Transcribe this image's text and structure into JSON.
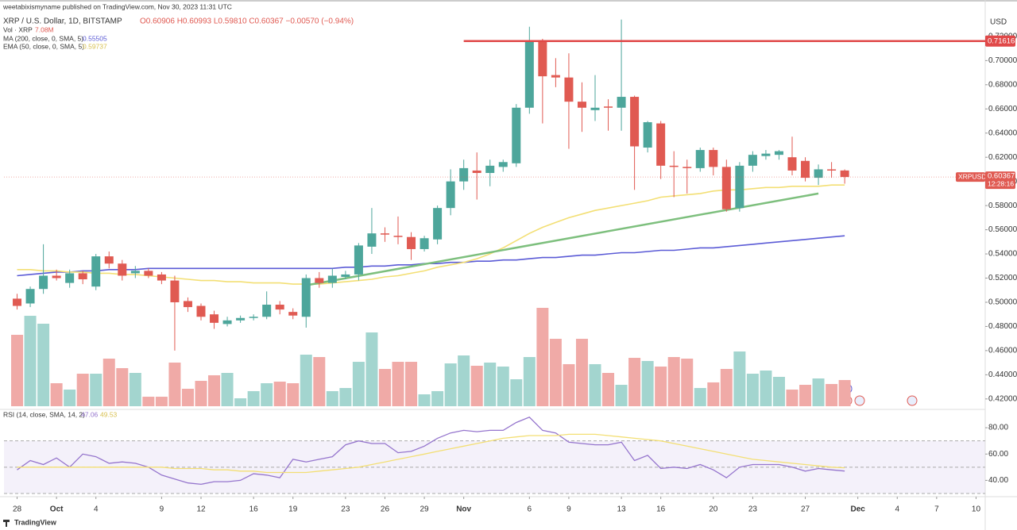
{
  "header": {
    "publisher": "weetabixismyname published on TradingView.com, Nov 30, 2023 11:31 UTC",
    "symbol": "XRP / U.S. Dollar, 1D, BITSTAMP",
    "ohlc": "O0.60906 H0.60993 L0.59810 C0.60367 −0.00570 (−0.94%)",
    "vol_value": "7.08M",
    "ma_value": "0.55505",
    "ema_value": "0.59737",
    "rsi_value": "47.06",
    "rsi_sma_value": "49.53",
    "footer": "TradingView"
  },
  "chart_data": [
    {
      "type": "candlestick",
      "currency": "USD",
      "x": [
        "2023-09-28",
        "2023-09-29",
        "2023-09-30",
        "2023-10-01",
        "2023-10-02",
        "2023-10-03",
        "2023-10-04",
        "2023-10-05",
        "2023-10-06",
        "2023-10-07",
        "2023-10-08",
        "2023-10-09",
        "2023-10-10",
        "2023-10-11",
        "2023-10-12",
        "2023-10-13",
        "2023-10-14",
        "2023-10-15",
        "2023-10-16",
        "2023-10-17",
        "2023-10-18",
        "2023-10-19",
        "2023-10-20",
        "2023-10-21",
        "2023-10-22",
        "2023-10-23",
        "2023-10-24",
        "2023-10-25",
        "2023-10-26",
        "2023-10-27",
        "2023-10-28",
        "2023-10-29",
        "2023-10-30",
        "2023-10-31",
        "2023-11-01",
        "2023-11-02",
        "2023-11-03",
        "2023-11-04",
        "2023-11-05",
        "2023-11-06",
        "2023-11-07",
        "2023-11-08",
        "2023-11-09",
        "2023-11-10",
        "2023-11-11",
        "2023-11-12",
        "2023-11-13",
        "2023-11-14",
        "2023-11-15",
        "2023-11-16",
        "2023-11-17",
        "2023-11-18",
        "2023-11-19",
        "2023-11-20",
        "2023-11-21",
        "2023-11-22",
        "2023-11-23",
        "2023-11-24",
        "2023-11-25",
        "2023-11-26",
        "2023-11-27",
        "2023-11-28",
        "2023-11-29",
        "2023-11-30"
      ],
      "open": [
        0.503,
        0.499,
        0.511,
        0.522,
        0.516,
        0.524,
        0.513,
        0.538,
        0.532,
        0.524,
        0.526,
        0.523,
        0.518,
        0.501,
        0.497,
        0.49,
        0.482,
        0.485,
        0.487,
        0.488,
        0.498,
        0.492,
        0.488,
        0.52,
        0.516,
        0.521,
        0.523,
        0.546,
        0.557,
        0.555,
        0.554,
        0.544,
        0.552,
        0.578,
        0.6,
        0.609,
        0.607,
        0.612,
        0.615,
        0.661,
        0.716,
        0.688,
        0.686,
        0.666,
        0.659,
        0.662,
        0.661,
        0.67,
        0.628,
        0.648,
        0.613,
        0.612,
        0.611,
        0.626,
        0.612,
        0.578,
        0.613,
        0.621,
        0.622,
        0.62,
        0.617,
        0.603,
        0.61,
        0.60906
      ],
      "high": [
        0.507,
        0.513,
        0.548,
        0.527,
        0.527,
        0.526,
        0.54,
        0.542,
        0.535,
        0.53,
        0.528,
        0.525,
        0.522,
        0.504,
        0.499,
        0.493,
        0.488,
        0.489,
        0.49,
        0.509,
        0.501,
        0.495,
        0.523,
        0.525,
        0.528,
        0.526,
        0.549,
        0.578,
        0.562,
        0.571,
        0.558,
        0.555,
        0.58,
        0.61,
        0.618,
        0.624,
        0.618,
        0.618,
        0.664,
        0.728,
        0.718,
        0.702,
        0.706,
        0.682,
        0.688,
        0.668,
        0.734,
        0.671,
        0.65,
        0.65,
        0.625,
        0.618,
        0.628,
        0.628,
        0.618,
        0.616,
        0.625,
        0.626,
        0.626,
        0.637,
        0.62,
        0.614,
        0.616,
        0.60993
      ],
      "low": [
        0.494,
        0.496,
        0.507,
        0.518,
        0.512,
        0.515,
        0.51,
        0.528,
        0.518,
        0.52,
        0.52,
        0.515,
        0.46,
        0.492,
        0.485,
        0.478,
        0.48,
        0.483,
        0.485,
        0.486,
        0.49,
        0.486,
        0.479,
        0.512,
        0.512,
        0.519,
        0.518,
        0.54,
        0.55,
        0.548,
        0.535,
        0.542,
        0.548,
        0.572,
        0.593,
        0.585,
        0.596,
        0.608,
        0.612,
        0.656,
        0.648,
        0.678,
        0.627,
        0.641,
        0.65,
        0.642,
        0.642,
        0.593,
        0.624,
        0.602,
        0.587,
        0.59,
        0.608,
        0.605,
        0.575,
        0.575,
        0.608,
        0.618,
        0.618,
        0.605,
        0.6,
        0.597,
        0.603,
        0.5981
      ],
      "close": [
        0.497,
        0.511,
        0.522,
        0.52,
        0.524,
        0.519,
        0.538,
        0.532,
        0.522,
        0.526,
        0.522,
        0.518,
        0.5,
        0.496,
        0.488,
        0.483,
        0.485,
        0.487,
        0.488,
        0.498,
        0.494,
        0.489,
        0.52,
        0.516,
        0.522,
        0.523,
        0.547,
        0.557,
        0.556,
        0.554,
        0.544,
        0.553,
        0.578,
        0.6,
        0.611,
        0.607,
        0.613,
        0.616,
        0.661,
        0.716,
        0.687,
        0.686,
        0.666,
        0.661,
        0.661,
        0.661,
        0.67,
        0.629,
        0.649,
        0.613,
        0.612,
        0.611,
        0.626,
        0.612,
        0.577,
        0.613,
        0.622,
        0.623,
        0.625,
        0.609,
        0.603,
        0.61,
        0.609,
        0.60367
      ],
      "up_color": "#4da69b",
      "down_color": "#e05a52",
      "xlim": [
        "2023-09-27",
        "2023-12-11"
      ],
      "xticks": [
        {
          "value": "2023-09-28",
          "label": "28"
        },
        {
          "value": "2023-10-01",
          "label": "Oct"
        },
        {
          "value": "2023-10-04",
          "label": "4"
        },
        {
          "value": "2023-10-09",
          "label": "9"
        },
        {
          "value": "2023-10-12",
          "label": "12"
        },
        {
          "value": "2023-10-16",
          "label": "16"
        },
        {
          "value": "2023-10-19",
          "label": "19"
        },
        {
          "value": "2023-10-23",
          "label": "23"
        },
        {
          "value": "2023-10-26",
          "label": "26"
        },
        {
          "value": "2023-10-29",
          "label": "29"
        },
        {
          "value": "2023-11-01",
          "label": "Nov"
        },
        {
          "value": "2023-11-06",
          "label": "6"
        },
        {
          "value": "2023-11-09",
          "label": "9"
        },
        {
          "value": "2023-11-13",
          "label": "13"
        },
        {
          "value": "2023-11-16",
          "label": "16"
        },
        {
          "value": "2023-11-20",
          "label": "20"
        },
        {
          "value": "2023-11-23",
          "label": "23"
        },
        {
          "value": "2023-11-27",
          "label": "27"
        },
        {
          "value": "2023-12-01",
          "label": "Dec"
        },
        {
          "value": "2023-12-04",
          "label": "4"
        },
        {
          "value": "2023-12-07",
          "label": "7"
        },
        {
          "value": "2023-12-10",
          "label": "10"
        }
      ],
      "ylim": [
        0.412,
        0.737
      ],
      "yticks": [
        {
          "value": 0.42,
          "label": "0.42000"
        },
        {
          "value": 0.44,
          "label": "0.44000"
        },
        {
          "value": 0.46,
          "label": "0.46000"
        },
        {
          "value": 0.48,
          "label": "0.48000"
        },
        {
          "value": 0.5,
          "label": "0.50000"
        },
        {
          "value": 0.52,
          "label": "0.52000"
        },
        {
          "value": 0.54,
          "label": "0.54000"
        },
        {
          "value": 0.56,
          "label": "0.56000"
        },
        {
          "value": 0.58,
          "label": "0.58000"
        },
        {
          "value": 0.6,
          "label": "0.60000"
        },
        {
          "value": 0.62,
          "label": "0.62000"
        },
        {
          "value": 0.64,
          "label": "0.64000"
        },
        {
          "value": 0.66,
          "label": "0.66000"
        },
        {
          "value": 0.68,
          "label": "0.68000"
        },
        {
          "value": 0.7,
          "label": "0.70000"
        },
        {
          "value": 0.72,
          "label": "0.72000"
        }
      ],
      "series": [
        {
          "name": "MA (200, close, 0, SMA, 5)",
          "color": "#5b5bd6",
          "values": [
            0.522,
            0.523,
            0.524,
            0.525,
            0.525,
            0.526,
            0.526,
            0.527,
            0.527,
            0.527,
            0.528,
            0.528,
            0.528,
            0.528,
            0.528,
            0.528,
            0.528,
            0.528,
            0.528,
            0.528,
            0.528,
            0.528,
            0.528,
            0.528,
            0.528,
            0.529,
            0.529,
            0.53,
            0.53,
            0.531,
            0.531,
            0.532,
            0.532,
            0.533,
            0.533,
            0.534,
            0.534,
            0.535,
            0.535,
            0.536,
            0.537,
            0.537,
            0.538,
            0.539,
            0.539,
            0.54,
            0.541,
            0.541,
            0.542,
            0.543,
            0.543,
            0.544,
            0.545,
            0.545,
            0.546,
            0.547,
            0.548,
            0.549,
            0.55,
            0.551,
            0.552,
            0.553,
            0.554,
            0.555
          ]
        },
        {
          "name": "EMA (50, close, 0, SMA, 5)",
          "color": "#f3df74",
          "values": [
            0.527,
            0.527,
            0.526,
            0.526,
            0.525,
            0.525,
            0.524,
            0.524,
            0.523,
            0.523,
            0.522,
            0.521,
            0.52,
            0.519,
            0.518,
            0.518,
            0.517,
            0.517,
            0.516,
            0.516,
            0.516,
            0.515,
            0.515,
            0.515,
            0.516,
            0.517,
            0.518,
            0.519,
            0.521,
            0.522,
            0.524,
            0.526,
            0.529,
            0.531,
            0.533,
            0.536,
            0.54,
            0.545,
            0.551,
            0.557,
            0.562,
            0.566,
            0.57,
            0.573,
            0.576,
            0.578,
            0.58,
            0.582,
            0.584,
            0.587,
            0.588,
            0.589,
            0.59,
            0.592,
            0.593,
            0.593,
            0.594,
            0.595,
            0.595,
            0.596,
            0.596,
            0.596,
            0.597,
            0.597
          ]
        }
      ],
      "trendline": {
        "color": "#7dbf7d",
        "from": [
          "2023-10-20",
          0.514
        ],
        "to": [
          "2023-11-28",
          0.59
        ]
      },
      "level": {
        "value": 0.71616,
        "label": "0.71616",
        "start": "2023-11-01",
        "color": "#e04848"
      },
      "last_price": {
        "symbol": "XRPUSD",
        "value": 0.60367,
        "label": "0.60367",
        "countdown": "12:28:16",
        "color": "#e05a52"
      }
    },
    {
      "type": "bar",
      "title": "Vol · XRP",
      "values": [
        19.31,
        24.45,
        22.31,
        6.22,
        4.5,
        8.79,
        8.79,
        12.87,
        10.3,
        9.01,
        2.57,
        2.57,
        11.8,
        4.72,
        6.86,
        8.37,
        9.01,
        2.15,
        4.08,
        6.22,
        6.65,
        6.22,
        13.94,
        13.3,
        4.08,
        4.93,
        12.01,
        19.95,
        10.08,
        12.01,
        12.01,
        3.22,
        4.08,
        11.58,
        13.73,
        10.94,
        11.8,
        10.73,
        7.29,
        13.3,
        26.6,
        18.23,
        11.37,
        18.23,
        11.37,
        9.01,
        5.79,
        13.08,
        12.23,
        10.73,
        13.3,
        12.87,
        4.93,
        6.44,
        10.08,
        14.8,
        8.79,
        9.65,
        7.94,
        4.5,
        5.79,
        7.51,
        6.01,
        7.08
      ],
      "up_color": "#a3d5cf",
      "down_color": "#f0aaa7"
    },
    {
      "type": "line",
      "title": "RSI (14, close, SMA, 14, 2)",
      "ylim": [
        30,
        88.5
      ],
      "yticks": [
        {
          "value": 40,
          "label": "40.00"
        },
        {
          "value": 60,
          "label": "60.00"
        },
        {
          "value": 80,
          "label": "80.00"
        }
      ],
      "band": [
        30,
        70
      ],
      "midline": 50,
      "series": [
        {
          "color": "#9575cd",
          "values": [
            48,
            55,
            52,
            57,
            50,
            60,
            58,
            53,
            54,
            53,
            50,
            44,
            41,
            38,
            37,
            39,
            39,
            40,
            45,
            44,
            42,
            56,
            54,
            56,
            58,
            67,
            70,
            68,
            68,
            61,
            62,
            66,
            72,
            76,
            78,
            77,
            78,
            78,
            84,
            88,
            78,
            76,
            69,
            68,
            67,
            67,
            69,
            55,
            59,
            49,
            50,
            49,
            52,
            48,
            42,
            50,
            52,
            52,
            52,
            50,
            47,
            49,
            48,
            47.06
          ]
        },
        {
          "color": "#f3df74",
          "values": [
            50,
            50,
            50,
            50,
            50,
            50,
            50,
            50,
            50,
            50,
            50,
            50,
            49,
            49,
            49,
            48,
            48,
            47,
            47,
            46,
            46,
            46,
            46,
            47,
            48,
            49,
            50,
            52,
            54,
            56,
            58,
            60,
            62,
            64,
            66,
            68,
            70,
            72,
            73,
            74,
            74,
            74,
            75,
            75,
            75,
            74,
            73,
            72,
            71,
            70,
            68,
            66,
            64,
            62,
            60,
            58,
            56,
            55,
            54,
            53,
            52,
            51,
            50,
            49.53
          ]
        }
      ]
    }
  ]
}
